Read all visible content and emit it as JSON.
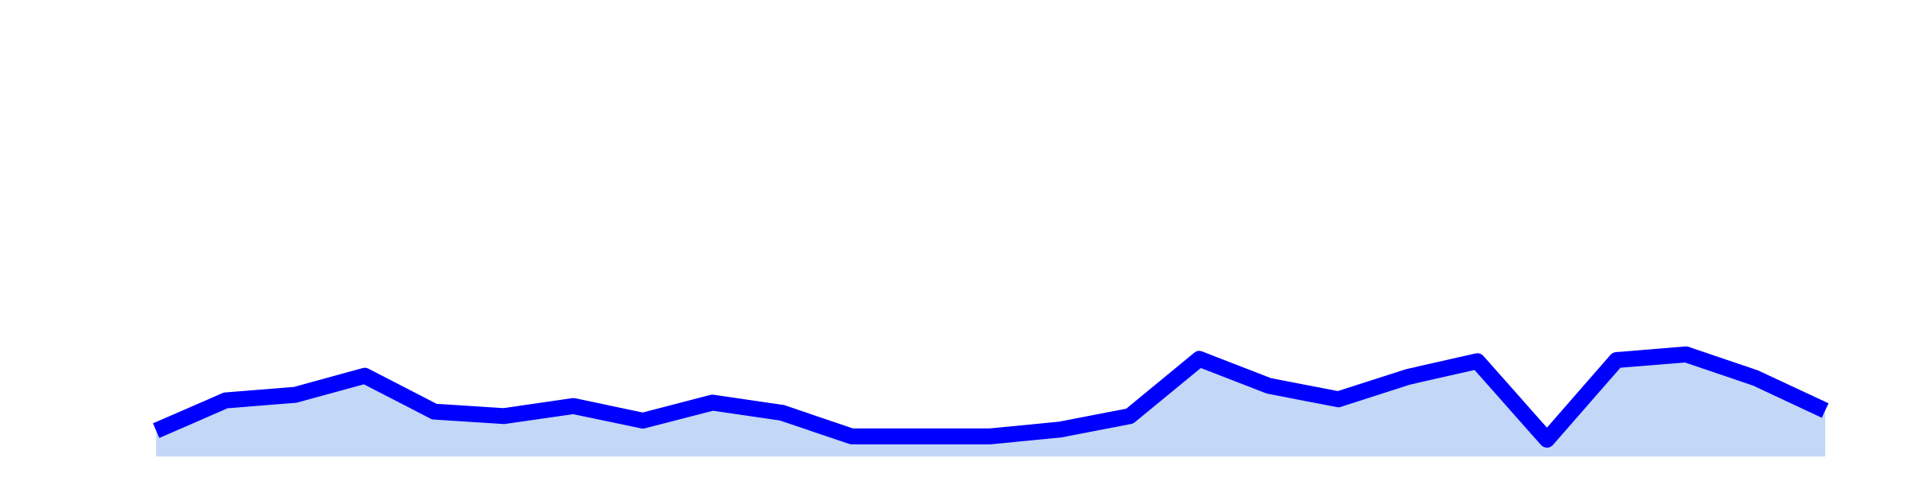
{
  "chart_data": {
    "type": "area",
    "x": [
      1,
      2,
      3,
      4,
      5,
      6,
      7,
      8,
      9,
      10,
      11,
      12,
      13,
      14,
      15,
      16,
      17,
      18,
      19,
      20,
      21,
      22,
      23,
      24,
      25
    ],
    "series": [
      {
        "values": [
          23,
          50,
          55,
          72,
          40,
          36,
          45,
          32,
          48,
          39,
          18,
          18,
          18,
          24,
          36,
          87,
          63,
          51,
          71,
          85,
          15,
          86,
          91,
          70,
          41
        ],
        "line_color": "#0000ff",
        "fill_color": "#c3d7f6"
      }
    ],
    "ylim": [
      0,
      400
    ],
    "grid": false,
    "axes_visible": false,
    "title": "",
    "xlabel": "",
    "ylabel": ""
  }
}
